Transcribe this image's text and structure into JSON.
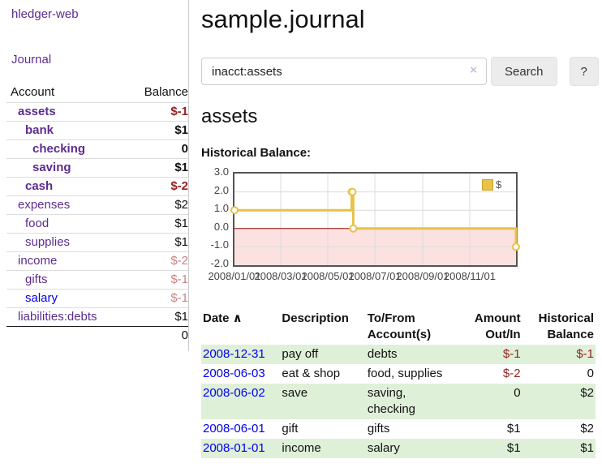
{
  "sidebar": {
    "brand": "hledger-web",
    "nav_journal": "Journal",
    "table": {
      "headers": {
        "account": "Account",
        "balance": "Balance"
      },
      "accounts": [
        {
          "label": "assets",
          "level": 1,
          "bold": true,
          "balance": "$-1",
          "balance_tone": "neg-strong"
        },
        {
          "label": "bank",
          "level": 2,
          "bold": true,
          "balance": "$1",
          "balance_tone": "pos"
        },
        {
          "label": "checking",
          "level": 3,
          "bold": true,
          "balance": "0",
          "balance_tone": "pos"
        },
        {
          "label": "saving",
          "level": 3,
          "bold": true,
          "balance": "$1",
          "balance_tone": "pos"
        },
        {
          "label": "cash",
          "level": 2,
          "bold": true,
          "balance": "$-2",
          "balance_tone": "neg-strong"
        },
        {
          "label": "expenses",
          "level": 1,
          "bold": false,
          "balance": "$2",
          "balance_tone": "pos"
        },
        {
          "label": "food",
          "level": 2,
          "bold": false,
          "balance": "$1",
          "balance_tone": "pos"
        },
        {
          "label": "supplies",
          "level": 2,
          "bold": false,
          "balance": "$1",
          "balance_tone": "pos"
        },
        {
          "label": "income",
          "level": 1,
          "bold": false,
          "balance": "$-2",
          "balance_tone": "neg-soft"
        },
        {
          "label": "gifts",
          "level": 2,
          "bold": false,
          "balance": "$-1",
          "balance_tone": "neg-soft"
        },
        {
          "label": "salary",
          "level": 2,
          "bold": false,
          "balance": "$-1",
          "balance_tone": "neg-soft",
          "link_tone": "blue"
        },
        {
          "label": "liabilities:debts",
          "level": 1,
          "bold": false,
          "balance": "$1",
          "balance_tone": "pos"
        }
      ],
      "total": "0"
    }
  },
  "header": {
    "title": "sample.journal"
  },
  "search": {
    "value": "inacct:assets",
    "clear_icon": "×",
    "button_label": "Search",
    "help_label": "?"
  },
  "account_page": {
    "heading": "assets",
    "section_label": "Historical Balance:"
  },
  "chart_data": {
    "type": "line",
    "step": true,
    "title": "Historical Balance",
    "x_range": [
      "2008-01-01",
      "2008-12-31"
    ],
    "ylim": [
      -2,
      3
    ],
    "y_ticks": [
      "3.0",
      "2.0",
      "1.0",
      "0.0",
      "-1.0",
      "-2.0"
    ],
    "x_ticks": [
      "2008/01/01",
      "2008/03/01",
      "2008/05/01",
      "2008/07/01",
      "2008/09/01",
      "2008/11/01"
    ],
    "series": [
      {
        "name": "$",
        "color": "#e8c249",
        "points": [
          [
            "2008-01-01",
            1
          ],
          [
            "2008-06-01",
            2
          ],
          [
            "2008-06-02",
            2
          ],
          [
            "2008-06-03",
            0
          ],
          [
            "2008-12-31",
            -1
          ]
        ]
      }
    ],
    "legend": {
      "label": "$",
      "position": "top-right"
    },
    "grid": true,
    "grid_color": "#dcdcdc",
    "border_color": "#545454",
    "negative_region_color": "#fce1e1",
    "zero_line_color": "#990000",
    "tick_color": "#444444"
  },
  "register": {
    "sort_icon": "∧",
    "columns": [
      {
        "lines": [
          "Date"
        ],
        "align": "left",
        "sortable": true
      },
      {
        "lines": [
          "Description"
        ],
        "align": "left"
      },
      {
        "lines": [
          "To/From",
          "Account(s)"
        ],
        "align": "left"
      },
      {
        "lines": [
          "Amount",
          "Out/In"
        ],
        "align": "right"
      },
      {
        "lines": [
          "Historical",
          "Balance"
        ],
        "align": "right"
      }
    ],
    "rows": [
      {
        "date": "2008-12-31",
        "description": "pay off",
        "accounts": [
          "debts"
        ],
        "amount": "$-1",
        "amount_tone": "neg",
        "balance": "$-1",
        "balance_tone": "neg"
      },
      {
        "date": "2008-06-03",
        "description": "eat & shop",
        "accounts": [
          "food, supplies"
        ],
        "amount": "$-2",
        "amount_tone": "neg",
        "balance": "0",
        "balance_tone": "pos"
      },
      {
        "date": "2008-06-02",
        "description": "save",
        "accounts": [
          "saving,",
          "checking"
        ],
        "amount": "0",
        "amount_tone": "pos",
        "balance": "$2",
        "balance_tone": "pos"
      },
      {
        "date": "2008-06-01",
        "description": "gift",
        "accounts": [
          "gifts"
        ],
        "amount": "$1",
        "amount_tone": "pos",
        "balance": "$2",
        "balance_tone": "pos"
      },
      {
        "date": "2008-01-01",
        "description": "income",
        "accounts": [
          "salary"
        ],
        "amount": "$1",
        "amount_tone": "pos",
        "balance": "$1",
        "balance_tone": "pos"
      }
    ]
  },
  "colors": {
    "link_purple": "#5c2d91",
    "link_blue": "#0000ee",
    "negative_strong": "#941f1f",
    "negative_soft": "#c98484",
    "row_green": "#dff0d8",
    "accent_gold": "#e8c249",
    "button_bg": "#ececec"
  }
}
